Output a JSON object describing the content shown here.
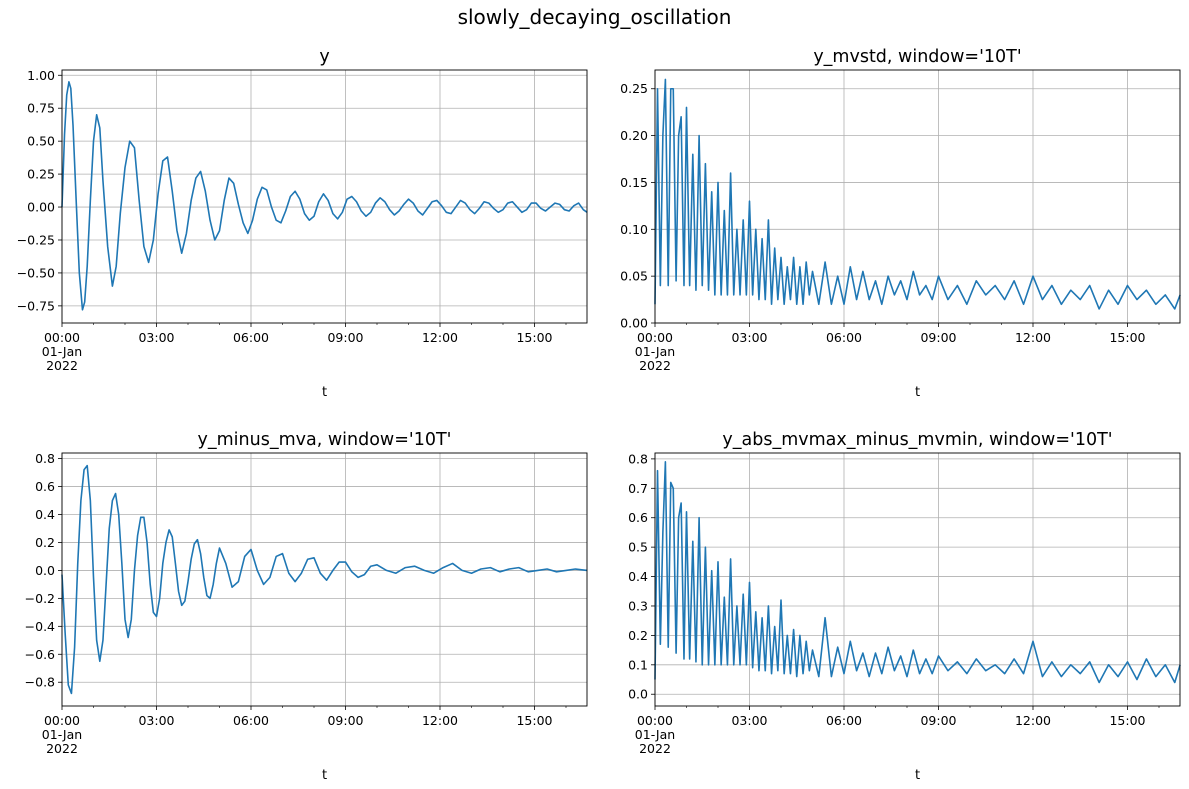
{
  "figure": {
    "suptitle": "slowly_decaying_oscillation",
    "line_color": "#1f77b4",
    "grid_color": "#b0b0b0",
    "x_tick_labels": [
      "00:00",
      "03:00",
      "06:00",
      "09:00",
      "12:00",
      "15:00"
    ],
    "x_date_line1": "01-Jan",
    "x_date_line2": "2022",
    "xlabel": "t"
  },
  "chart_data": [
    {
      "type": "line",
      "title": "y",
      "xlabel": "t",
      "ylabel": "",
      "xlim": [
        "2022-01-01 00:00",
        "2022-01-01 16:40"
      ],
      "ylim": [
        -0.88,
        1.04
      ],
      "yticks": [
        -0.75,
        -0.5,
        -0.25,
        0.0,
        0.25,
        0.5,
        0.75,
        1.0
      ],
      "ytick_labels": [
        "−0.75",
        "−0.50",
        "−0.25",
        "0.00",
        "0.25",
        "0.50",
        "0.75",
        "1.00"
      ],
      "grid": true,
      "series": [
        {
          "x_hours": [
            0.0,
            0.08,
            0.15,
            0.22,
            0.28,
            0.35,
            0.45,
            0.55,
            0.65,
            0.72,
            0.8,
            0.9,
            1.0,
            1.1,
            1.2,
            1.3,
            1.45,
            1.6,
            1.72,
            1.85,
            2.0,
            2.15,
            2.3,
            2.45,
            2.6,
            2.75,
            2.9,
            3.05,
            3.2,
            3.35,
            3.5,
            3.65,
            3.8,
            3.95,
            4.1,
            4.25,
            4.4,
            4.55,
            4.7,
            4.85,
            5.0,
            5.15,
            5.3,
            5.45,
            5.6,
            5.75,
            5.9,
            6.05,
            6.2,
            6.35,
            6.5,
            6.65,
            6.8,
            6.95,
            7.1,
            7.25,
            7.4,
            7.55,
            7.7,
            7.85,
            8.0,
            8.15,
            8.3,
            8.45,
            8.6,
            8.75,
            8.9,
            9.05,
            9.2,
            9.35,
            9.5,
            9.65,
            9.8,
            9.95,
            10.1,
            10.25,
            10.4,
            10.55,
            10.7,
            10.85,
            11.0,
            11.15,
            11.3,
            11.45,
            11.6,
            11.75,
            11.9,
            12.05,
            12.2,
            12.35,
            12.5,
            12.65,
            12.8,
            12.95,
            13.1,
            13.25,
            13.4,
            13.55,
            13.7,
            13.85,
            14.0,
            14.15,
            14.3,
            14.45,
            14.6,
            14.75,
            14.9,
            15.05,
            15.2,
            15.35,
            15.5,
            15.65,
            15.8,
            15.95,
            16.1,
            16.25,
            16.4,
            16.55,
            16.67
          ],
          "y": [
            0.0,
            0.55,
            0.85,
            0.95,
            0.9,
            0.62,
            0.05,
            -0.5,
            -0.78,
            -0.72,
            -0.45,
            0.05,
            0.5,
            0.7,
            0.6,
            0.2,
            -0.3,
            -0.6,
            -0.45,
            -0.05,
            0.3,
            0.5,
            0.45,
            0.05,
            -0.3,
            -0.42,
            -0.25,
            0.1,
            0.35,
            0.38,
            0.12,
            -0.18,
            -0.35,
            -0.2,
            0.05,
            0.22,
            0.27,
            0.12,
            -0.1,
            -0.25,
            -0.18,
            0.05,
            0.22,
            0.18,
            0.02,
            -0.12,
            -0.2,
            -0.1,
            0.06,
            0.15,
            0.13,
            0.0,
            -0.1,
            -0.12,
            -0.03,
            0.08,
            0.12,
            0.06,
            -0.05,
            -0.1,
            -0.07,
            0.04,
            0.1,
            0.05,
            -0.05,
            -0.09,
            -0.04,
            0.06,
            0.08,
            0.04,
            -0.03,
            -0.07,
            -0.04,
            0.03,
            0.07,
            0.04,
            -0.02,
            -0.06,
            -0.03,
            0.02,
            0.06,
            0.03,
            -0.03,
            -0.06,
            -0.01,
            0.04,
            0.05,
            0.01,
            -0.04,
            -0.05,
            0.0,
            0.05,
            0.03,
            -0.02,
            -0.05,
            -0.01,
            0.04,
            0.03,
            -0.01,
            -0.04,
            -0.02,
            0.03,
            0.04,
            0.0,
            -0.04,
            -0.02,
            0.03,
            0.03,
            -0.01,
            -0.03,
            0.0,
            0.03,
            0.02,
            -0.02,
            -0.03,
            0.01,
            0.03,
            -0.02,
            -0.04
          ]
        }
      ]
    },
    {
      "type": "line",
      "title": "y_mvstd, window='10T'",
      "xlabel": "t",
      "ylabel": "",
      "xlim": [
        "2022-01-01 00:00",
        "2022-01-01 16:40"
      ],
      "ylim": [
        0.0,
        0.27
      ],
      "yticks": [
        0.0,
        0.05,
        0.1,
        0.15,
        0.2,
        0.25
      ],
      "ytick_labels": [
        "0.00",
        "0.05",
        "0.10",
        "0.15",
        "0.20",
        "0.25"
      ],
      "grid": true,
      "series": [
        {
          "x_hours": [
            0.0,
            0.08,
            0.17,
            0.25,
            0.33,
            0.42,
            0.5,
            0.58,
            0.67,
            0.75,
            0.83,
            0.92,
            1.0,
            1.1,
            1.2,
            1.3,
            1.4,
            1.5,
            1.6,
            1.7,
            1.8,
            1.9,
            2.0,
            2.1,
            2.2,
            2.3,
            2.4,
            2.5,
            2.6,
            2.7,
            2.8,
            2.9,
            3.0,
            3.1,
            3.2,
            3.3,
            3.4,
            3.5,
            3.6,
            3.7,
            3.8,
            3.9,
            4.0,
            4.1,
            4.2,
            4.3,
            4.4,
            4.5,
            4.6,
            4.7,
            4.8,
            4.9,
            5.0,
            5.2,
            5.4,
            5.6,
            5.8,
            6.0,
            6.2,
            6.4,
            6.6,
            6.8,
            7.0,
            7.2,
            7.4,
            7.6,
            7.8,
            8.0,
            8.2,
            8.4,
            8.6,
            8.8,
            9.0,
            9.3,
            9.6,
            9.9,
            10.2,
            10.5,
            10.8,
            11.1,
            11.4,
            11.7,
            12.0,
            12.3,
            12.6,
            12.9,
            13.2,
            13.5,
            13.8,
            14.1,
            14.4,
            14.7,
            15.0,
            15.3,
            15.6,
            15.9,
            16.2,
            16.5,
            16.67
          ],
          "y": [
            0.02,
            0.25,
            0.04,
            0.2,
            0.26,
            0.04,
            0.25,
            0.25,
            0.045,
            0.2,
            0.22,
            0.04,
            0.23,
            0.04,
            0.18,
            0.035,
            0.2,
            0.04,
            0.17,
            0.035,
            0.14,
            0.03,
            0.15,
            0.03,
            0.12,
            0.03,
            0.16,
            0.03,
            0.1,
            0.03,
            0.11,
            0.03,
            0.13,
            0.03,
            0.1,
            0.025,
            0.09,
            0.025,
            0.11,
            0.02,
            0.08,
            0.025,
            0.07,
            0.02,
            0.06,
            0.025,
            0.07,
            0.02,
            0.06,
            0.02,
            0.065,
            0.03,
            0.055,
            0.02,
            0.065,
            0.02,
            0.05,
            0.02,
            0.06,
            0.025,
            0.055,
            0.025,
            0.045,
            0.02,
            0.05,
            0.03,
            0.045,
            0.025,
            0.055,
            0.03,
            0.04,
            0.025,
            0.05,
            0.025,
            0.04,
            0.02,
            0.045,
            0.03,
            0.04,
            0.025,
            0.045,
            0.02,
            0.05,
            0.025,
            0.04,
            0.02,
            0.035,
            0.025,
            0.04,
            0.015,
            0.035,
            0.02,
            0.04,
            0.025,
            0.035,
            0.02,
            0.03,
            0.015,
            0.03
          ]
        }
      ]
    },
    {
      "type": "line",
      "title": "y_minus_mva, window='10T'",
      "xlabel": "t",
      "ylabel": "",
      "xlim": [
        "2022-01-01 00:00",
        "2022-01-01 16:40"
      ],
      "ylim": [
        -0.97,
        0.84
      ],
      "yticks": [
        -0.8,
        -0.6,
        -0.4,
        -0.2,
        0.0,
        0.2,
        0.4,
        0.6,
        0.8
      ],
      "ytick_labels": [
        "−0.8",
        "−0.6",
        "−0.4",
        "−0.2",
        "0.0",
        "0.2",
        "0.4",
        "0.6",
        "0.8"
      ],
      "grid": true,
      "series": [
        {
          "x_hours": [
            0.0,
            0.1,
            0.2,
            0.3,
            0.4,
            0.5,
            0.6,
            0.7,
            0.8,
            0.9,
            1.0,
            1.1,
            1.2,
            1.3,
            1.4,
            1.5,
            1.6,
            1.7,
            1.8,
            1.9,
            2.0,
            2.1,
            2.2,
            2.3,
            2.4,
            2.5,
            2.6,
            2.7,
            2.8,
            2.9,
            3.0,
            3.1,
            3.2,
            3.3,
            3.4,
            3.5,
            3.6,
            3.7,
            3.8,
            3.9,
            4.0,
            4.1,
            4.2,
            4.3,
            4.4,
            4.5,
            4.6,
            4.7,
            4.8,
            4.9,
            5.0,
            5.2,
            5.4,
            5.6,
            5.8,
            6.0,
            6.2,
            6.4,
            6.6,
            6.8,
            7.0,
            7.2,
            7.4,
            7.6,
            7.8,
            8.0,
            8.2,
            8.4,
            8.6,
            8.8,
            9.0,
            9.2,
            9.4,
            9.6,
            9.8,
            10.0,
            10.3,
            10.6,
            10.9,
            11.2,
            11.5,
            11.8,
            12.1,
            12.4,
            12.7,
            13.0,
            13.3,
            13.6,
            13.9,
            14.2,
            14.5,
            14.8,
            15.1,
            15.4,
            15.7,
            16.0,
            16.3,
            16.67
          ],
          "y": [
            -0.03,
            -0.45,
            -0.82,
            -0.88,
            -0.55,
            0.05,
            0.5,
            0.72,
            0.75,
            0.5,
            -0.05,
            -0.5,
            -0.65,
            -0.5,
            -0.1,
            0.3,
            0.5,
            0.55,
            0.4,
            0.05,
            -0.35,
            -0.48,
            -0.35,
            0.0,
            0.25,
            0.38,
            0.38,
            0.2,
            -0.1,
            -0.3,
            -0.33,
            -0.2,
            0.05,
            0.2,
            0.29,
            0.24,
            0.05,
            -0.15,
            -0.25,
            -0.22,
            -0.08,
            0.08,
            0.19,
            0.22,
            0.12,
            -0.05,
            -0.18,
            -0.2,
            -0.1,
            0.05,
            0.16,
            0.05,
            -0.12,
            -0.08,
            0.1,
            0.15,
            0.0,
            -0.1,
            -0.05,
            0.1,
            0.12,
            -0.02,
            -0.08,
            -0.02,
            0.08,
            0.09,
            -0.02,
            -0.07,
            0.0,
            0.06,
            0.06,
            -0.01,
            -0.05,
            -0.03,
            0.03,
            0.04,
            0.0,
            -0.02,
            0.02,
            0.03,
            0.0,
            -0.02,
            0.02,
            0.05,
            0.0,
            -0.02,
            0.01,
            0.02,
            -0.01,
            0.01,
            0.02,
            -0.01,
            0.0,
            0.01,
            -0.01,
            0.0,
            0.01,
            0.0
          ]
        }
      ]
    },
    {
      "type": "line",
      "title": "y_abs_mvmax_minus_mvmin, window='10T'",
      "xlabel": "t",
      "ylabel": "",
      "xlim": [
        "2022-01-01 00:00",
        "2022-01-01 16:40"
      ],
      "ylim": [
        -0.04,
        0.82
      ],
      "yticks": [
        0.0,
        0.1,
        0.2,
        0.3,
        0.4,
        0.5,
        0.6,
        0.7,
        0.8
      ],
      "ytick_labels": [
        "0.0",
        "0.1",
        "0.2",
        "0.3",
        "0.4",
        "0.5",
        "0.6",
        "0.7",
        "0.8"
      ],
      "grid": true,
      "series": [
        {
          "x_hours": [
            0.0,
            0.08,
            0.17,
            0.25,
            0.33,
            0.42,
            0.5,
            0.58,
            0.67,
            0.75,
            0.83,
            0.92,
            1.0,
            1.1,
            1.2,
            1.3,
            1.4,
            1.5,
            1.6,
            1.7,
            1.8,
            1.9,
            2.0,
            2.1,
            2.2,
            2.3,
            2.4,
            2.5,
            2.6,
            2.7,
            2.8,
            2.9,
            3.0,
            3.1,
            3.2,
            3.3,
            3.4,
            3.5,
            3.6,
            3.7,
            3.8,
            3.9,
            4.0,
            4.1,
            4.2,
            4.3,
            4.4,
            4.5,
            4.6,
            4.7,
            4.8,
            4.9,
            5.0,
            5.2,
            5.4,
            5.6,
            5.8,
            6.0,
            6.2,
            6.4,
            6.6,
            6.8,
            7.0,
            7.2,
            7.4,
            7.6,
            7.8,
            8.0,
            8.2,
            8.4,
            8.6,
            8.8,
            9.0,
            9.3,
            9.6,
            9.9,
            10.2,
            10.5,
            10.8,
            11.1,
            11.4,
            11.7,
            12.0,
            12.3,
            12.6,
            12.9,
            13.2,
            13.5,
            13.8,
            14.1,
            14.4,
            14.7,
            15.0,
            15.3,
            15.6,
            15.9,
            16.2,
            16.5,
            16.67
          ],
          "y": [
            0.05,
            0.76,
            0.17,
            0.55,
            0.79,
            0.16,
            0.72,
            0.7,
            0.14,
            0.6,
            0.65,
            0.12,
            0.62,
            0.12,
            0.52,
            0.11,
            0.6,
            0.1,
            0.5,
            0.1,
            0.42,
            0.1,
            0.45,
            0.1,
            0.33,
            0.1,
            0.46,
            0.1,
            0.3,
            0.1,
            0.34,
            0.1,
            0.38,
            0.09,
            0.28,
            0.08,
            0.26,
            0.08,
            0.3,
            0.07,
            0.23,
            0.08,
            0.32,
            0.07,
            0.2,
            0.07,
            0.22,
            0.06,
            0.2,
            0.07,
            0.18,
            0.08,
            0.15,
            0.06,
            0.26,
            0.06,
            0.16,
            0.07,
            0.18,
            0.08,
            0.14,
            0.06,
            0.14,
            0.07,
            0.16,
            0.08,
            0.13,
            0.06,
            0.15,
            0.07,
            0.12,
            0.07,
            0.13,
            0.08,
            0.11,
            0.07,
            0.12,
            0.08,
            0.1,
            0.07,
            0.12,
            0.07,
            0.18,
            0.06,
            0.11,
            0.06,
            0.1,
            0.07,
            0.11,
            0.04,
            0.1,
            0.06,
            0.11,
            0.05,
            0.12,
            0.06,
            0.1,
            0.04,
            0.1
          ]
        }
      ]
    }
  ]
}
